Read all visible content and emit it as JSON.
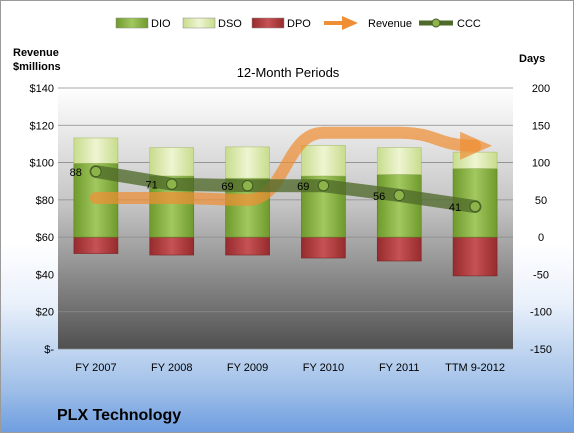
{
  "chart_data": {
    "type": "bar",
    "title": "12-Month Periods",
    "left_axis_label": [
      "Revenue",
      "$millions"
    ],
    "right_axis_label": "Days",
    "categories": [
      "FY 2007",
      "FY 2008",
      "FY 2009",
      "FY 2010",
      "FY 2011",
      "TTM 9-2012"
    ],
    "left_axis": {
      "min": 0,
      "max": 140,
      "ticks": [
        "$-",
        "$20",
        "$40",
        "$60",
        "$80",
        "$100",
        "$120",
        "$140"
      ]
    },
    "right_axis": {
      "min": -150,
      "max": 200,
      "ticks": [
        "-150",
        "-100",
        "-50",
        "0",
        "50",
        "100",
        "150",
        "200"
      ]
    },
    "legend": {
      "position": "top",
      "entries": [
        "DIO",
        "DSO",
        "DPO",
        "Revenue",
        "CCC"
      ]
    },
    "series": [
      {
        "name": "DIO",
        "axis": "right",
        "values": [
          99,
          82,
          79,
          82,
          84,
          92
        ]
      },
      {
        "name": "DSO",
        "axis": "right",
        "values": [
          34,
          38,
          42,
          41,
          36,
          22
        ]
      },
      {
        "name": "DPO",
        "axis": "right",
        "values": [
          -22,
          -24,
          -24,
          -28,
          -32,
          -52
        ]
      },
      {
        "name": "Revenue",
        "axis": "left",
        "values": [
          81,
          81,
          80,
          116,
          116,
          109
        ]
      },
      {
        "name": "CCC",
        "axis": "right",
        "values": [
          88,
          71,
          69,
          69,
          56,
          41
        ]
      }
    ],
    "data_labels": [
      "88",
      "71",
      "69",
      "69",
      "56",
      "41"
    ],
    "grid": true
  },
  "company": "PLX Technology",
  "colors": {
    "DIO": "#7ea63a",
    "DSO": "#d8e7a8",
    "DPO": "#a8383a",
    "Revenue": "#ef8f35",
    "CCC": "#4f6a2a",
    "plot_top": "#ffffff",
    "plot_bottom": "#505050"
  }
}
